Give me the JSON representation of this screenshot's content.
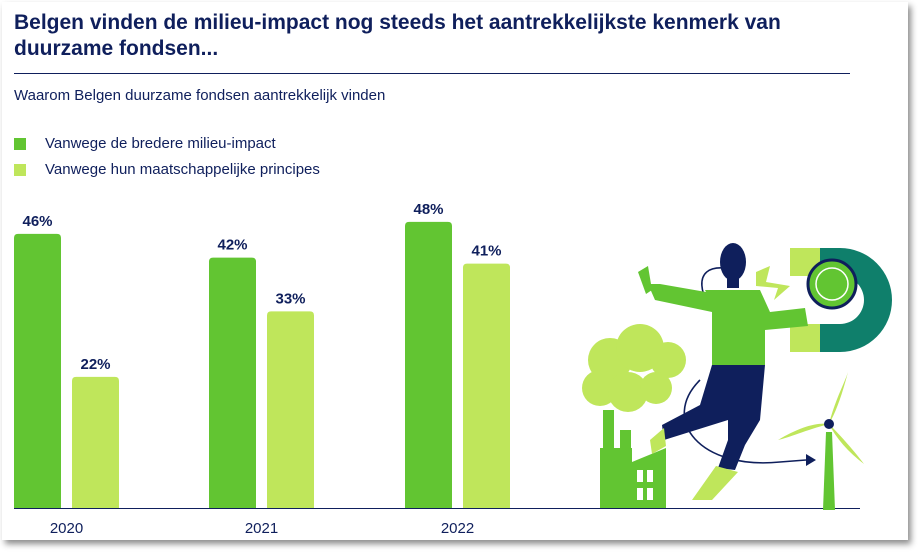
{
  "header": {
    "title": "Belgen vinden de milieu-impact nog steeds het aantrekkelijkste kenmerk van duurzame fondsen...",
    "subtitle": "Waarom Belgen duurzame fondsen aantrekkelijk vinden"
  },
  "legend": [
    {
      "label": "Vanwege de bredere milieu-impact",
      "color": "#62c532"
    },
    {
      "label": "Vanwege hun maatschappelijke principes",
      "color": "#bfe65b"
    }
  ],
  "chart_data": {
    "type": "bar",
    "categories": [
      "2020",
      "2021",
      "2022"
    ],
    "series": [
      {
        "name": "Vanwege de bredere milieu-impact",
        "values": [
          46,
          42,
          48
        ],
        "labels": [
          "46%",
          "42%",
          "48%"
        ],
        "color": "#62c532"
      },
      {
        "name": "Vanwege hun maatschappelijke principes",
        "values": [
          22,
          33,
          41
        ],
        "labels": [
          "22%",
          "33%",
          "41%"
        ],
        "color": "#bfe65b"
      }
    ],
    "ylim": [
      0,
      50
    ],
    "grid": false,
    "legend_position": "top-left"
  },
  "colors": {
    "navy": "#0f1f5c",
    "teal": "#0f7f6b",
    "green": "#62c532",
    "lightgreen": "#bfe65b"
  },
  "illustration": {
    "icon": "person-with-magnet-illustration"
  }
}
